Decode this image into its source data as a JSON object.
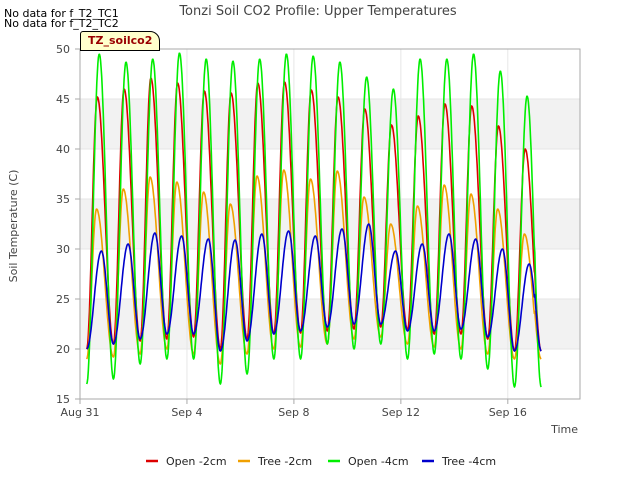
{
  "notes": [
    "No data for f_T2_TC1",
    "No data for f_T2_TC2"
  ],
  "tag_label": "TZ_soilco2",
  "colors": {
    "band": "#f2f2f2",
    "axis": "#aaaaaa"
  },
  "chart_data": {
    "type": "line",
    "title": "Tonzi Soil CO2 Profile: Upper Temperatures",
    "xlabel": "Time",
    "ylabel": "Soil Temperature (C)",
    "xlim": [
      0,
      18.7
    ],
    "ylim": [
      15,
      50
    ],
    "yticks": [
      15,
      20,
      25,
      30,
      35,
      40,
      45,
      50
    ],
    "xticks": [
      {
        "day": 0,
        "label": "Aug 31"
      },
      {
        "day": 4,
        "label": "Sep 4"
      },
      {
        "day": 8,
        "label": "Sep 8"
      },
      {
        "day": 12,
        "label": "Sep 12"
      },
      {
        "day": 16,
        "label": "Sep 16"
      }
    ],
    "legend_position": "bottom",
    "series": [
      {
        "name": "Open -2cm",
        "color": "#dd0000",
        "start": 0.25,
        "end": 17.25,
        "peak_phase": 0.65,
        "days": [
          {
            "min": 20.0,
            "max": 45.2
          },
          {
            "min": 20.5,
            "max": 46.0
          },
          {
            "min": 20.8,
            "max": 47.1
          },
          {
            "min": 21.0,
            "max": 46.6
          },
          {
            "min": 21.2,
            "max": 45.8
          },
          {
            "min": 20.0,
            "max": 45.6
          },
          {
            "min": 21.0,
            "max": 46.6
          },
          {
            "min": 21.5,
            "max": 46.7
          },
          {
            "min": 21.6,
            "max": 45.9
          },
          {
            "min": 21.8,
            "max": 45.2
          },
          {
            "min": 22.0,
            "max": 44.0
          },
          {
            "min": 22.2,
            "max": 42.4
          },
          {
            "min": 21.9,
            "max": 43.3
          },
          {
            "min": 21.5,
            "max": 44.5
          },
          {
            "min": 21.5,
            "max": 44.3
          },
          {
            "min": 21.0,
            "max": 42.3
          },
          {
            "min": 19.8,
            "max": 40.0
          }
        ]
      },
      {
        "name": "Tree -2cm",
        "color": "#f0a000",
        "start": 0.25,
        "end": 17.25,
        "peak_phase": 0.62,
        "days": [
          {
            "min": 19.0,
            "max": 34.0
          },
          {
            "min": 19.2,
            "max": 36.0
          },
          {
            "min": 19.5,
            "max": 37.2
          },
          {
            "min": 20.0,
            "max": 36.7
          },
          {
            "min": 19.5,
            "max": 35.7
          },
          {
            "min": 18.5,
            "max": 34.5
          },
          {
            "min": 19.5,
            "max": 37.3
          },
          {
            "min": 20.0,
            "max": 37.9
          },
          {
            "min": 20.2,
            "max": 37.0
          },
          {
            "min": 20.5,
            "max": 37.8
          },
          {
            "min": 21.0,
            "max": 35.2
          },
          {
            "min": 21.2,
            "max": 32.5
          },
          {
            "min": 20.5,
            "max": 34.3
          },
          {
            "min": 20.2,
            "max": 36.4
          },
          {
            "min": 20.0,
            "max": 35.5
          },
          {
            "min": 19.5,
            "max": 34.0
          },
          {
            "min": 19.0,
            "max": 31.5
          }
        ]
      },
      {
        "name": "Open -4cm",
        "color": "#00ee00",
        "start": 0.25,
        "end": 17.25,
        "peak_phase": 0.72,
        "days": [
          {
            "min": 16.5,
            "max": 49.5
          },
          {
            "min": 17.0,
            "max": 48.7
          },
          {
            "min": 18.5,
            "max": 49.0
          },
          {
            "min": 19.0,
            "max": 49.6
          },
          {
            "min": 19.0,
            "max": 49.0
          },
          {
            "min": 16.5,
            "max": 48.8
          },
          {
            "min": 17.5,
            "max": 49.0
          },
          {
            "min": 19.0,
            "max": 49.5
          },
          {
            "min": 19.0,
            "max": 49.3
          },
          {
            "min": 20.5,
            "max": 48.7
          },
          {
            "min": 20.0,
            "max": 47.2
          },
          {
            "min": 20.5,
            "max": 46.0
          },
          {
            "min": 19.0,
            "max": 49.0
          },
          {
            "min": 19.5,
            "max": 49.0
          },
          {
            "min": 19.0,
            "max": 49.5
          },
          {
            "min": 18.0,
            "max": 47.8
          },
          {
            "min": 16.2,
            "max": 45.3
          }
        ]
      },
      {
        "name": "Tree -4cm",
        "color": "#0000cc",
        "start": 0.25,
        "end": 17.25,
        "peak_phase": 0.8,
        "days": [
          {
            "min": 20.0,
            "max": 29.8
          },
          {
            "min": 20.5,
            "max": 30.5
          },
          {
            "min": 21.0,
            "max": 31.6
          },
          {
            "min": 21.5,
            "max": 31.3
          },
          {
            "min": 21.5,
            "max": 31.0
          },
          {
            "min": 19.8,
            "max": 30.9
          },
          {
            "min": 20.8,
            "max": 31.5
          },
          {
            "min": 21.5,
            "max": 31.8
          },
          {
            "min": 21.8,
            "max": 31.3
          },
          {
            "min": 22.2,
            "max": 32.0
          },
          {
            "min": 22.5,
            "max": 32.5
          },
          {
            "min": 22.5,
            "max": 29.8
          },
          {
            "min": 21.8,
            "max": 30.5
          },
          {
            "min": 21.8,
            "max": 31.5
          },
          {
            "min": 22.0,
            "max": 31.0
          },
          {
            "min": 21.2,
            "max": 30.0
          },
          {
            "min": 19.8,
            "max": 28.5
          }
        ]
      }
    ]
  }
}
